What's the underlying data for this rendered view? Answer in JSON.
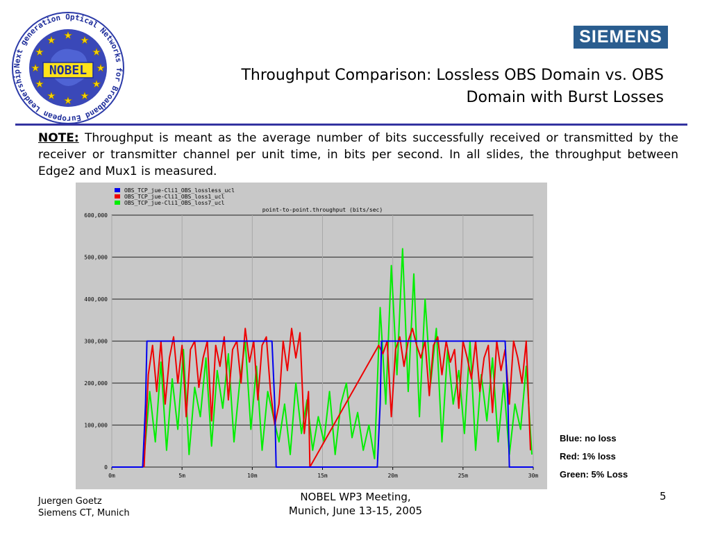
{
  "logo": {
    "center_text": "NOBEL",
    "ring_text": "Next generation Optical Networks for Broadband European Leadership"
  },
  "brand": {
    "name": "SIEMENS"
  },
  "title": {
    "line1": "Throughput Comparison: Lossless OBS Domain vs. OBS",
    "line2": "Domain with Burst Losses"
  },
  "note": {
    "label": "NOTE:",
    "text": " Throughput is meant as the average number of bits successfully received or transmitted by the receiver or transmitter channel per unit time, in bits per second. In all slides, the throughput between Edge2 and Mux1 is measured."
  },
  "side_legend": [
    "Blue: no loss",
    "Red: 1% loss",
    "Green: 5% Loss"
  ],
  "footer": {
    "author": "Juergen Goetz",
    "affiliation": "Siemens CT, Munich",
    "meeting": "NOBEL WP3 Meeting,",
    "place_date": "Munich, June 13-15, 2005",
    "page": "5"
  },
  "colors": {
    "brand": "#2a5d8f",
    "rule": "#3333a0",
    "plot_bg": "#c8c8c8",
    "lossless": "#0000ee",
    "loss1": "#ee0000",
    "loss7": "#00ee00"
  },
  "chart_data": {
    "type": "line",
    "title": "point-to-point.throughput (bits/sec)",
    "xlabel": "",
    "ylabel": "",
    "xlim": [
      0,
      30
    ],
    "ylim": [
      0,
      600000
    ],
    "x_ticks": [
      "0m",
      "5m",
      "10m",
      "15m",
      "20m",
      "25m",
      "30m"
    ],
    "y_ticks": [
      "0",
      "100,000",
      "200,000",
      "300,000",
      "400,000",
      "500,000",
      "600,000"
    ],
    "grid": "horizontal",
    "legend_position": "top-left",
    "series": [
      {
        "name": "OBS_TCP_jue-Cli1_OBS_lossless_ucl",
        "color": "#0000ee",
        "x": [
          0,
          2.2,
          2.4,
          2.5,
          11.4,
          11.6,
          11.7,
          18.9,
          19.1,
          19.2,
          28.0,
          28.2,
          28.3,
          30
        ],
        "y": [
          0,
          0,
          150000,
          300000,
          300000,
          150000,
          0,
          0,
          150000,
          300000,
          300000,
          150000,
          0,
          0
        ]
      },
      {
        "name": "OBS_TCP_jue-Cli1_OBS_loss1_ucl",
        "color": "#ee0000",
        "x": [
          2.3,
          2.6,
          2.9,
          3.2,
          3.5,
          3.8,
          4.1,
          4.4,
          4.7,
          5.0,
          5.3,
          5.6,
          5.9,
          6.2,
          6.5,
          6.8,
          7.1,
          7.4,
          7.7,
          8.0,
          8.3,
          8.6,
          8.9,
          9.2,
          9.5,
          9.8,
          10.1,
          10.4,
          10.7,
          11.0,
          11.3,
          11.6,
          11.9,
          12.2,
          12.5,
          12.8,
          13.1,
          13.4,
          13.7,
          14.0,
          14.1,
          19.0,
          19.3,
          19.6,
          19.9,
          20.2,
          20.5,
          20.8,
          21.1,
          21.4,
          21.7,
          22.0,
          22.3,
          22.6,
          22.9,
          23.2,
          23.5,
          23.8,
          24.1,
          24.4,
          24.7,
          25.0,
          25.3,
          25.6,
          25.9,
          26.2,
          26.5,
          26.8,
          27.1,
          27.4,
          27.7,
          28.0,
          28.3,
          28.6,
          28.9,
          29.2,
          29.5,
          29.8
        ],
        "y": [
          0,
          220000,
          290000,
          180000,
          300000,
          150000,
          260000,
          310000,
          200000,
          290000,
          120000,
          280000,
          300000,
          190000,
          260000,
          300000,
          110000,
          290000,
          240000,
          310000,
          160000,
          280000,
          300000,
          200000,
          330000,
          250000,
          300000,
          160000,
          290000,
          310000,
          180000,
          100000,
          150000,
          300000,
          230000,
          330000,
          260000,
          320000,
          80000,
          180000,
          0,
          290000,
          270000,
          300000,
          120000,
          280000,
          310000,
          240000,
          300000,
          330000,
          290000,
          260000,
          300000,
          170000,
          290000,
          310000,
          220000,
          300000,
          250000,
          280000,
          140000,
          300000,
          260000,
          210000,
          300000,
          180000,
          260000,
          290000,
          130000,
          300000,
          230000,
          280000,
          150000,
          300000,
          260000,
          200000,
          300000,
          40000
        ]
      },
      {
        "name": "OBS_TCP_jue-Cli1_OBS_loss7_ucl",
        "color": "#00ee00",
        "x": [
          2.3,
          2.7,
          3.1,
          3.5,
          3.9,
          4.3,
          4.7,
          5.1,
          5.5,
          5.9,
          6.3,
          6.7,
          7.1,
          7.5,
          7.9,
          8.3,
          8.7,
          9.1,
          9.5,
          9.9,
          10.3,
          10.7,
          11.1,
          11.5,
          11.9,
          12.3,
          12.7,
          13.1,
          13.5,
          13.9,
          14.3,
          14.7,
          15.1,
          15.5,
          15.9,
          16.3,
          16.7,
          17.1,
          17.5,
          17.9,
          18.3,
          18.7,
          19.1,
          19.5,
          19.9,
          20.3,
          20.7,
          21.1,
          21.5,
          21.9,
          22.3,
          22.7,
          23.1,
          23.5,
          23.9,
          24.3,
          24.7,
          25.1,
          25.5,
          25.9,
          26.3,
          26.7,
          27.1,
          27.5,
          27.9,
          28.3,
          28.7,
          29.1,
          29.5,
          29.9
        ],
        "y": [
          20000,
          180000,
          60000,
          250000,
          40000,
          210000,
          90000,
          280000,
          30000,
          190000,
          120000,
          260000,
          50000,
          230000,
          140000,
          270000,
          60000,
          200000,
          300000,
          90000,
          240000,
          40000,
          180000,
          120000,
          60000,
          150000,
          30000,
          200000,
          80000,
          160000,
          40000,
          120000,
          60000,
          180000,
          30000,
          150000,
          200000,
          70000,
          130000,
          40000,
          100000,
          20000,
          380000,
          150000,
          480000,
          220000,
          520000,
          180000,
          460000,
          120000,
          400000,
          200000,
          330000,
          60000,
          280000,
          150000,
          230000,
          80000,
          300000,
          40000,
          220000,
          110000,
          260000,
          60000,
          200000,
          30000,
          150000,
          90000,
          240000,
          30000
        ]
      }
    ]
  }
}
